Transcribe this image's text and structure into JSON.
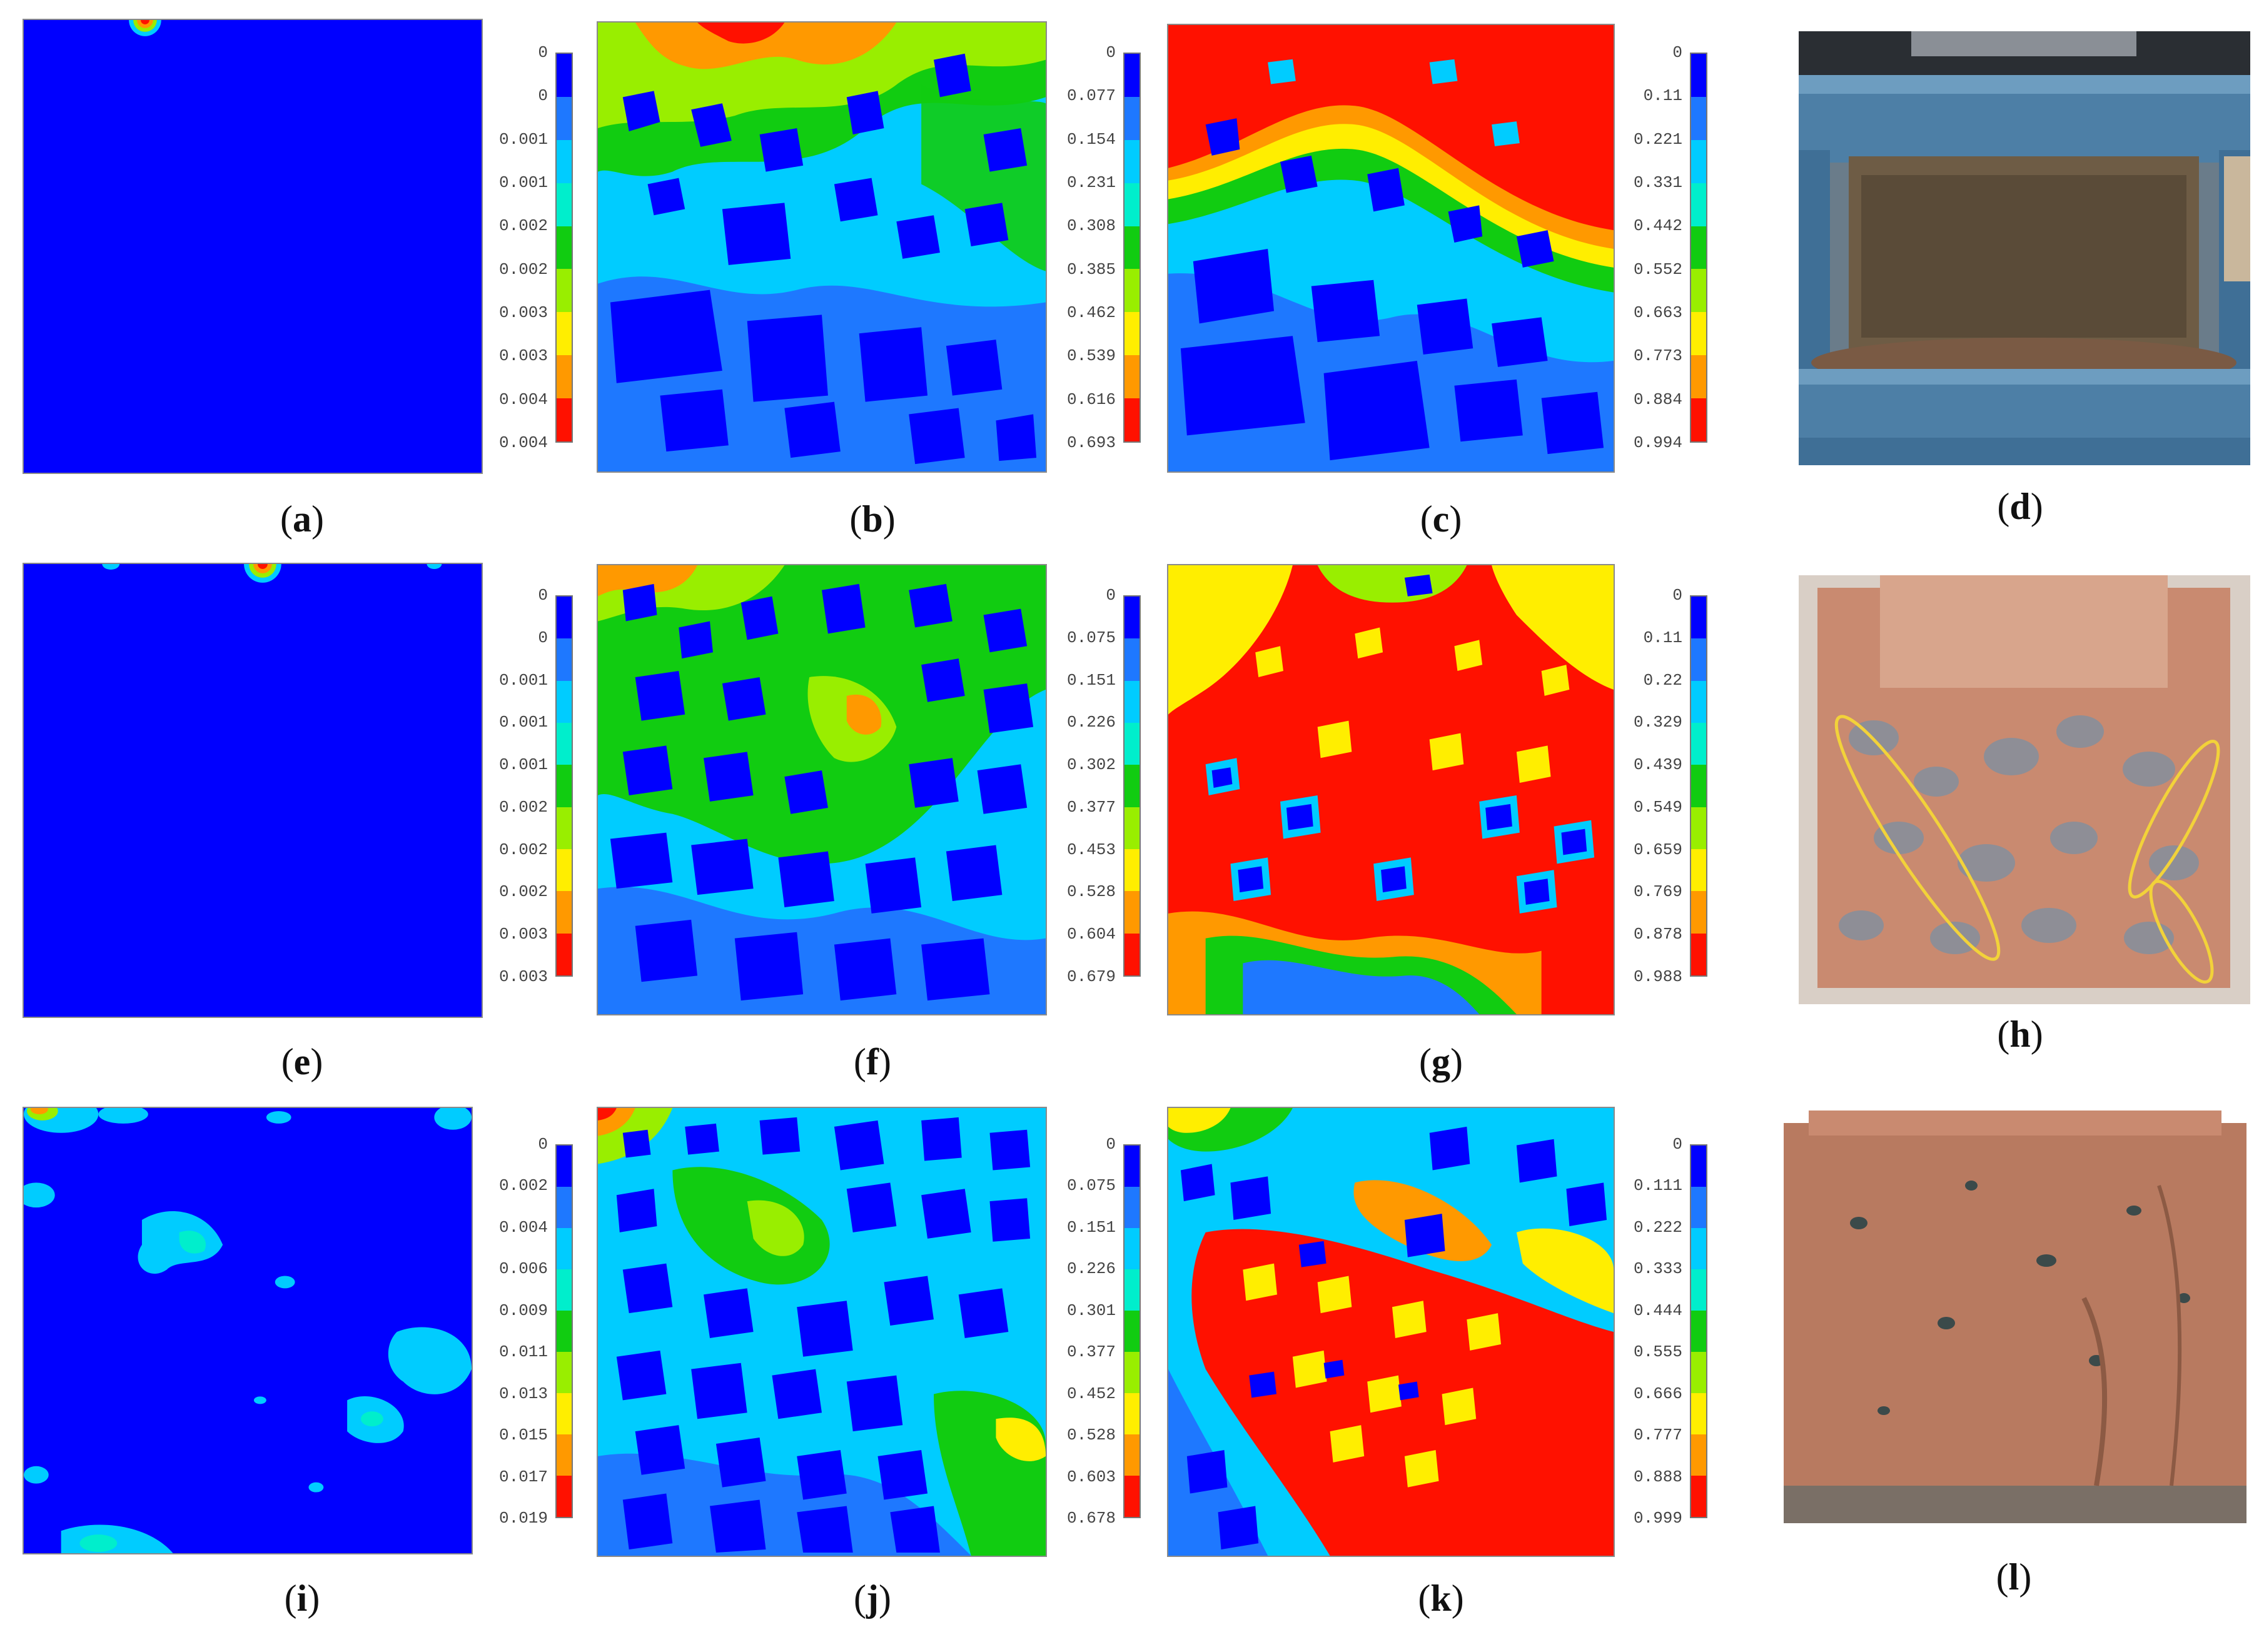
{
  "panels": {
    "a": {
      "caption": "a",
      "ticks": [
        "0",
        "0",
        "0.001",
        "0.001",
        "0.002",
        "0.002",
        "0.003",
        "0.003",
        "0.004",
        "0.004"
      ]
    },
    "b": {
      "caption": "b",
      "ticks": [
        "0",
        "0.077",
        "0.154",
        "0.231",
        "0.308",
        "0.385",
        "0.462",
        "0.539",
        "0.616",
        "0.693"
      ]
    },
    "c": {
      "caption": "c",
      "ticks": [
        "0",
        "0.11",
        "0.221",
        "0.331",
        "0.442",
        "0.552",
        "0.663",
        "0.773",
        "0.884",
        "0.994"
      ]
    },
    "d": {
      "caption": "d"
    },
    "e": {
      "caption": "e",
      "ticks": [
        "0",
        "0",
        "0.001",
        "0.001",
        "0.001",
        "0.002",
        "0.002",
        "0.002",
        "0.003",
        "0.003"
      ]
    },
    "f": {
      "caption": "f",
      "ticks": [
        "0",
        "0.075",
        "0.151",
        "0.226",
        "0.302",
        "0.377",
        "0.453",
        "0.528",
        "0.604",
        "0.679"
      ]
    },
    "g": {
      "caption": "g",
      "ticks": [
        "0",
        "0.11",
        "0.22",
        "0.329",
        "0.439",
        "0.549",
        "0.659",
        "0.769",
        "0.878",
        "0.988"
      ]
    },
    "h": {
      "caption": "h"
    },
    "i": {
      "caption": "i",
      "ticks": [
        "0",
        "0.002",
        "0.004",
        "0.006",
        "0.009",
        "0.011",
        "0.013",
        "0.015",
        "0.017",
        "0.019"
      ]
    },
    "j": {
      "caption": "j",
      "ticks": [
        "0",
        "0.075",
        "0.151",
        "0.226",
        "0.301",
        "0.377",
        "0.452",
        "0.528",
        "0.603",
        "0.678"
      ]
    },
    "k": {
      "caption": "k",
      "ticks": [
        "0",
        "0.111",
        "0.222",
        "0.333",
        "0.444",
        "0.555",
        "0.666",
        "0.777",
        "0.888",
        "0.999"
      ]
    },
    "l": {
      "caption": "l"
    }
  },
  "colormap": [
    "#0000ff",
    "#1e78ff",
    "#00ccff",
    "#00eecc",
    "#11cc11",
    "#99ee00",
    "#ffee00",
    "#ff9900",
    "#ff1100"
  ],
  "colors": {
    "background": "#ffffff",
    "contour_base": "#0000ff",
    "aggregate": "#0000ff",
    "mortar_hot": "#ff1100"
  }
}
